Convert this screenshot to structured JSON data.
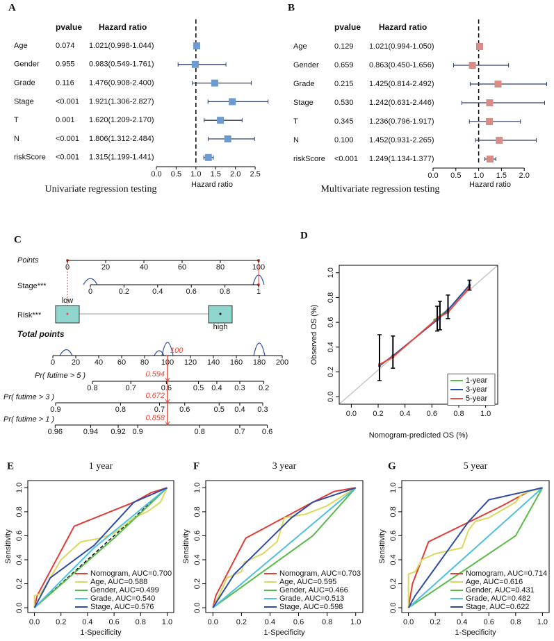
{
  "chart_data": [
    {
      "type": "forest",
      "panel": "A",
      "caption": "Univariate regression testing",
      "pvalue_header": "pvalue",
      "ratio_header": "Hazard ratio",
      "xlabel": "Hazard ratio",
      "categories": [
        "Age",
        "Gender",
        "Grade",
        "Stage",
        "T",
        "N",
        "riskScore"
      ],
      "pvalues": [
        "0.074",
        "0.955",
        "0.116",
        "<0.001",
        "0.001",
        "<0.001",
        "<0.001"
      ],
      "values": [
        1.021,
        0.983,
        1.476,
        1.921,
        1.62,
        1.806,
        1.315
      ],
      "lower": [
        0.998,
        0.549,
        0.908,
        1.306,
        1.209,
        1.312,
        1.199
      ],
      "upper": [
        1.044,
        1.761,
        2.4,
        2.827,
        2.17,
        2.484,
        1.441
      ],
      "value_labels": [
        "1.021(0.998-1.044)",
        "0.983(0.549-1.761)",
        "1.476(0.908-2.400)",
        "1.921(1.306-2.827)",
        "1.620(1.209-2.170)",
        "1.806(1.312-2.484)",
        "1.315(1.199-1.441)"
      ],
      "color": "#6b9bd1",
      "refline": 1,
      "xlim": [
        0,
        2.85
      ],
      "xticks": [
        {
          "value": 0,
          "label": "0.0"
        },
        0.5,
        {
          "value": 1,
          "label": "1.0"
        },
        1.5,
        {
          "value": 2,
          "label": "2.0"
        },
        2.5
      ]
    },
    {
      "type": "forest",
      "panel": "B",
      "caption": "Multivariate regression testing",
      "pvalue_header": "pvalue",
      "ratio_header": "Hazard ratio",
      "xlabel": "Hazard ratio",
      "categories": [
        "Age",
        "Gender",
        "Grade",
        "Stage",
        "T",
        "N",
        "riskScore"
      ],
      "pvalues": [
        "0.129",
        "0.659",
        "0.215",
        "0.530",
        "0.345",
        "0.100",
        "<0.001"
      ],
      "values": [
        1.021,
        0.863,
        1.425,
        1.242,
        1.236,
        1.452,
        1.249
      ],
      "lower": [
        0.994,
        0.45,
        0.814,
        0.631,
        0.796,
        0.931,
        1.134
      ],
      "upper": [
        1.05,
        1.656,
        2.492,
        2.446,
        1.917,
        2.265,
        1.377
      ],
      "value_labels": [
        "1.021(0.994-1.050)",
        "0.863(0.450-1.656)",
        "1.425(0.814-2.492)",
        "1.242(0.631-2.446)",
        "1.236(0.796-1.917)",
        "1.452(0.931-2.265)",
        "1.249(1.134-1.377)"
      ],
      "color": "#d98c85",
      "refline": 1,
      "xlim": [
        0,
        2.5
      ],
      "xticks": [
        {
          "value": 0,
          "label": "0.0"
        },
        0.5,
        {
          "value": 1,
          "label": "1.0"
        },
        1.5,
        {
          "value": 2,
          "label": "2.0"
        }
      ]
    },
    {
      "type": "nomogram",
      "panel": "C",
      "points_axis": {
        "label": "Points",
        "lim": [
          0,
          100
        ],
        "ticks": [
          0,
          20,
          40,
          60,
          80,
          100
        ]
      },
      "variables": [
        {
          "label": "Stage***",
          "lim": [
            0,
            1
          ],
          "points_lim": [
            12,
            100
          ],
          "ticks": [
            0,
            0.2,
            0.4,
            0.6,
            0.8,
            1
          ]
        },
        {
          "label": "Risk***",
          "categories": [
            "low",
            "high"
          ],
          "points": [
            0,
            80
          ]
        }
      ],
      "total_axis": {
        "label": "Total points",
        "lim": [
          0,
          200
        ],
        "ticks": [
          0,
          20,
          40,
          60,
          80,
          100,
          120,
          140,
          160,
          180,
          200
        ]
      },
      "probability_axes": [
        {
          "label": "Pr( futime > 5 )",
          "ticks": [
            0.8,
            0.7,
            0.6,
            0.5,
            0.4,
            0.3,
            0.2
          ],
          "points": [
            34.5,
            68,
            99,
            127,
            143,
            163,
            184
          ]
        },
        {
          "label": "Pr( futime > 3 )",
          "ticks": [
            0.9,
            0.8,
            0.7,
            0.6,
            0.5,
            0.4,
            0.3
          ],
          "points": [
            2.4,
            59,
            93,
            115,
            145,
            163,
            183
          ]
        },
        {
          "label": "Pr( futime > 1 )",
          "ticks": [
            0.96,
            0.94,
            0.92,
            0.9,
            0.8,
            0.7,
            0.6
          ],
          "points": [
            2,
            33,
            57,
            74,
            128,
            163,
            187
          ]
        }
      ],
      "total_points": 100,
      "predictions": [
        0.594,
        0.672,
        0.858
      ]
    },
    {
      "type": "calibration",
      "panel": "D",
      "xlabel": "Nomogram-predicted OS (%)",
      "ylabel": "Observed OS (%)",
      "xlim": [
        -0.09,
        1.09
      ],
      "ylim": [
        -0.06,
        1.06
      ],
      "xticks": [
        {
          "value": 0,
          "label": "0.0"
        },
        0.2,
        0.4,
        0.6,
        0.8,
        {
          "value": 1,
          "label": "1.0"
        }
      ],
      "yticks": [
        {
          "value": 0,
          "label": "0.0"
        },
        0.2,
        0.4,
        0.6,
        0.8,
        {
          "value": 1,
          "label": "1.0"
        }
      ],
      "legend": "bottom-right",
      "series": [
        {
          "name": "1-year",
          "color": "#5aba47",
          "x": [
            0.62,
            0.72,
            0.88
          ],
          "values": [
            0.62,
            0.7,
            0.9
          ]
        },
        {
          "name": "3-year",
          "color": "#2b4ba6",
          "x": [
            0.21,
            0.31,
            0.64,
            0.72,
            0.88
          ],
          "values": [
            0.25,
            0.33,
            0.62,
            0.7,
            0.9
          ]
        },
        {
          "name": "5-year",
          "color": "#e8493a",
          "x": [
            0.21,
            0.31,
            0.65,
            0.72,
            0.88
          ],
          "values": [
            0.26,
            0.32,
            0.64,
            0.68,
            0.88
          ]
        }
      ],
      "errorbars": {
        "x": [
          0.21,
          0.31,
          0.64,
          0.66,
          0.72,
          0.88
        ],
        "lower": [
          0.13,
          0.23,
          0.53,
          0.54,
          0.63,
          0.86
        ],
        "upper": [
          0.5,
          0.49,
          0.73,
          0.77,
          0.82,
          0.94
        ]
      }
    },
    {
      "type": "roc",
      "panel": "E",
      "title": "1 year",
      "xlabel": "1-Specificity",
      "ylabel": "Sensitivity",
      "xlim": [
        -0.05,
        1.05
      ],
      "ylim": [
        -0.04,
        1.06
      ],
      "xticks": [
        {
          "value": 0,
          "label": "0.0"
        },
        0.2,
        0.4,
        0.6,
        0.8,
        {
          "value": 1,
          "label": "1.0"
        }
      ],
      "yticks": [
        {
          "value": 0,
          "label": "0.0"
        },
        0.2,
        0.4,
        0.6,
        0.8,
        {
          "value": 1,
          "label": "1.0"
        }
      ],
      "legend": "bottom-right",
      "series": [
        {
          "name": "Nomogram, AUC=0.700",
          "color": "#e03b35",
          "x": [
            0,
            0.02,
            0.3,
            0.75,
            0.88,
            1
          ],
          "values": [
            0,
            0.1,
            0.68,
            0.88,
            0.96,
            1
          ]
        },
        {
          "name": "Age, AUC=0.588",
          "color": "#d9d95a",
          "x": [
            0,
            0,
            0.05,
            0.2,
            0.3,
            0.35,
            0.5,
            0.6,
            0.75,
            0.85,
            0.95,
            1
          ],
          "values": [
            0,
            0.1,
            0.12,
            0.4,
            0.5,
            0.55,
            0.58,
            0.62,
            0.75,
            0.8,
            0.88,
            1
          ]
        },
        {
          "name": "Gender, AUC=0.499",
          "color": "#5aba47",
          "x": [
            0,
            0.6,
            1
          ],
          "values": [
            0,
            0.58,
            1
          ]
        },
        {
          "name": "Grade, AUC=0.540",
          "color": "#4fc1e0",
          "x": [
            0,
            0.45,
            1
          ],
          "values": [
            0,
            0.5,
            1
          ]
        },
        {
          "name": "Stage, AUC=0.576",
          "color": "#2b4ba6",
          "x": [
            0,
            0.12,
            0.45,
            0.75,
            1
          ],
          "values": [
            0,
            0.25,
            0.52,
            0.88,
            1
          ]
        }
      ]
    },
    {
      "type": "roc",
      "panel": "F",
      "title": "3 year",
      "xlabel": "1-Specificity",
      "ylabel": "Sensitivity",
      "xlim": [
        -0.05,
        1.05
      ],
      "ylim": [
        -0.04,
        1.06
      ],
      "xticks": [
        {
          "value": 0,
          "label": "0.0"
        },
        0.2,
        0.4,
        0.6,
        0.8,
        {
          "value": 1,
          "label": "1.0"
        }
      ],
      "yticks": [
        {
          "value": 0,
          "label": "0.0"
        },
        0.2,
        0.4,
        0.6,
        0.8,
        {
          "value": 1,
          "label": "1.0"
        }
      ],
      "legend": "bottom-right",
      "series": [
        {
          "name": "Nomogram, AUC=0.703",
          "color": "#e03b35",
          "x": [
            0,
            0.02,
            0.23,
            0.7,
            0.85,
            1
          ],
          "values": [
            0,
            0.1,
            0.58,
            0.88,
            0.97,
            1
          ]
        },
        {
          "name": "Age, AUC=0.595",
          "color": "#d9d95a",
          "x": [
            0,
            0.05,
            0.1,
            0.2,
            0.22,
            0.35,
            0.45,
            0.5,
            0.65,
            0.8,
            1
          ],
          "values": [
            0,
            0.12,
            0.25,
            0.3,
            0.38,
            0.45,
            0.55,
            0.75,
            0.78,
            0.85,
            1
          ]
        },
        {
          "name": "Gender, AUC=0.466",
          "color": "#5aba47",
          "x": [
            0,
            0.7,
            1
          ],
          "values": [
            0,
            0.6,
            1
          ]
        },
        {
          "name": "Grade, AUC=0.513",
          "color": "#4fc1e0",
          "x": [
            0,
            0.55,
            1
          ],
          "values": [
            0,
            0.55,
            1
          ]
        },
        {
          "name": "Stage, AUC=0.598",
          "color": "#2b4ba6",
          "x": [
            0,
            0.15,
            0.55,
            0.7,
            1
          ],
          "values": [
            0,
            0.28,
            0.75,
            0.88,
            1
          ]
        }
      ]
    },
    {
      "type": "roc",
      "panel": "G",
      "title": "5 year",
      "xlabel": "1-Specificity",
      "ylabel": "Sensitivity",
      "xlim": [
        -0.05,
        1.05
      ],
      "ylim": [
        -0.04,
        1.06
      ],
      "xticks": [
        {
          "value": 0,
          "label": "0.0"
        },
        0.2,
        0.4,
        0.6,
        0.8,
        {
          "value": 1,
          "label": "1.0"
        }
      ],
      "yticks": [
        {
          "value": 0,
          "label": "0.0"
        },
        0.2,
        0.4,
        0.6,
        0.8,
        {
          "value": 1,
          "label": "1.0"
        }
      ],
      "legend": "bottom-right",
      "series": [
        {
          "name": "Nomogram, AUC=0.714",
          "color": "#e03b35",
          "x": [
            0,
            0.03,
            0.15,
            0.7,
            0.9,
            1
          ],
          "values": [
            0,
            0.2,
            0.55,
            0.85,
            0.97,
            1
          ]
        },
        {
          "name": "Age, AUC=0.616",
          "color": "#d9d95a",
          "x": [
            0,
            0,
            0.05,
            0.1,
            0.2,
            0.4,
            0.45,
            0.5,
            0.6,
            0.8,
            0.85,
            1
          ],
          "values": [
            0,
            0.28,
            0.3,
            0.4,
            0.45,
            0.5,
            0.65,
            0.72,
            0.75,
            0.88,
            0.95,
            1
          ]
        },
        {
          "name": "Gender, AUC=0.431",
          "color": "#5aba47",
          "x": [
            0,
            0.8,
            1
          ],
          "values": [
            0,
            0.6,
            1
          ]
        },
        {
          "name": "Grade, AUC=0.482",
          "color": "#4fc1e0",
          "x": [
            0,
            0.65,
            1
          ],
          "values": [
            0,
            0.65,
            1
          ]
        },
        {
          "name": "Stage, AUC=0.622",
          "color": "#2b4ba6",
          "x": [
            0,
            0.05,
            0.45,
            0.6,
            1
          ],
          "values": [
            0,
            0.1,
            0.72,
            0.9,
            1
          ]
        }
      ]
    }
  ]
}
